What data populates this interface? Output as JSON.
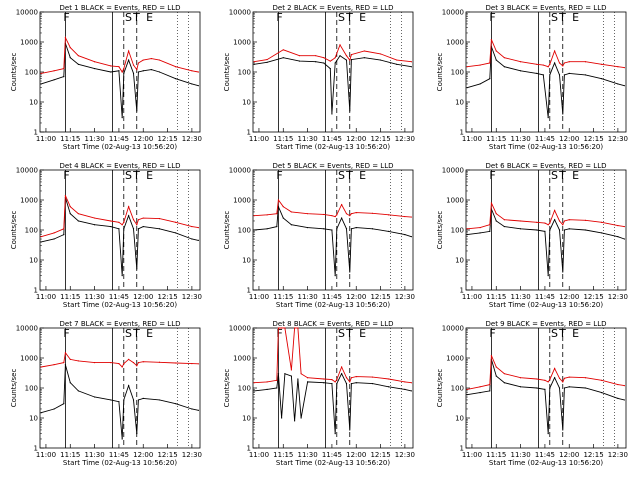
{
  "figure": {
    "ylabel": "Counts/sec",
    "xlabel": "Start Time (02-Aug-13 10:56:20)"
  },
  "axes": {
    "xlim": [
      "10:56:20",
      "12:35:00"
    ],
    "x_ticks": [
      "11:00",
      "11:15",
      "11:30",
      "11:45",
      "12:00",
      "12:15",
      "12:30"
    ],
    "ylim": [
      1,
      10000
    ],
    "y_scale": "log",
    "y_ticks": [
      "1",
      "10",
      "100",
      "1000",
      "10000"
    ]
  },
  "markers": {
    "solid": [
      "11:12",
      "11:41"
    ],
    "dashed": [
      "11:48",
      "11:56"
    ],
    "dotted": [
      "12:21",
      "12:28"
    ],
    "labels": [
      {
        "text": "F",
        "at": "11:12"
      },
      {
        "text": "S",
        "at": "11:50"
      },
      {
        "text": "T",
        "at": "11:55"
      },
      {
        "text": "E",
        "at": "12:03"
      }
    ]
  },
  "legend_colors": {
    "events": "#000000",
    "lld": "#e00000"
  },
  "chart_data": [
    {
      "type": "line",
      "title": "Det 1 BLACK = Events, RED = LLD",
      "x": [
        "10:57",
        "11:05",
        "11:11",
        "11:12",
        "11:15",
        "11:20",
        "11:30",
        "11:40",
        "11:45",
        "11:47",
        "11:48",
        "11:51",
        "11:54",
        "11:56",
        "11:57",
        "12:00",
        "12:05",
        "12:10",
        "12:20",
        "12:30",
        "12:34"
      ],
      "series": [
        {
          "name": "BLACK = Events",
          "values": [
            40,
            55,
            70,
            900,
            300,
            180,
            130,
            100,
            110,
            3,
            90,
            250,
            90,
            5,
            100,
            110,
            120,
            100,
            60,
            40,
            35
          ]
        },
        {
          "name": "RED = LLD",
          "values": [
            90,
            110,
            130,
            1400,
            650,
            350,
            220,
            160,
            150,
            100,
            130,
            500,
            170,
            120,
            200,
            250,
            280,
            250,
            150,
            110,
            100
          ]
        }
      ]
    },
    {
      "type": "line",
      "title": "Det 2 BLACK = Events, RED = LLD",
      "x": [
        "10:57",
        "11:05",
        "11:15",
        "11:25",
        "11:35",
        "11:40",
        "11:44",
        "11:45",
        "11:47",
        "11:50",
        "11:54",
        "11:56",
        "11:57",
        "12:05",
        "12:15",
        "12:25",
        "12:34"
      ],
      "series": [
        {
          "name": "BLACK = Events",
          "values": [
            180,
            210,
            300,
            230,
            220,
            200,
            130,
            4,
            200,
            350,
            250,
            5,
            260,
            300,
            250,
            180,
            150
          ]
        },
        {
          "name": "RED = LLD",
          "values": [
            220,
            260,
            550,
            350,
            350,
            300,
            230,
            250,
            300,
            800,
            350,
            250,
            380,
            500,
            400,
            250,
            220
          ]
        }
      ]
    },
    {
      "type": "line",
      "title": "Det 3 BLACK = Events, RED = LLD",
      "x": [
        "10:57",
        "11:05",
        "11:11",
        "11:12",
        "11:15",
        "11:20",
        "11:30",
        "11:40",
        "11:44",
        "11:47",
        "11:48",
        "11:51",
        "11:54",
        "11:56",
        "11:57",
        "12:00",
        "12:10",
        "12:20",
        "12:30",
        "12:34"
      ],
      "series": [
        {
          "name": "BLACK = Events",
          "values": [
            30,
            40,
            60,
            700,
            250,
            150,
            110,
            90,
            80,
            3,
            80,
            200,
            80,
            4,
            80,
            90,
            80,
            60,
            40,
            35
          ]
        },
        {
          "name": "RED = LLD",
          "values": [
            150,
            170,
            200,
            1200,
            500,
            300,
            220,
            180,
            170,
            150,
            180,
            500,
            200,
            160,
            200,
            220,
            220,
            180,
            150,
            140
          ]
        }
      ]
    },
    {
      "type": "line",
      "title": "Det 4 BLACK = Events, RED = LLD",
      "x": [
        "10:57",
        "11:05",
        "11:11",
        "11:12",
        "11:15",
        "11:20",
        "11:30",
        "11:40",
        "11:45",
        "11:47",
        "11:48",
        "11:51",
        "11:54",
        "11:56",
        "11:57",
        "12:00",
        "12:10",
        "12:20",
        "12:30",
        "12:34"
      ],
      "series": [
        {
          "name": "BLACK = Events",
          "values": [
            40,
            50,
            70,
            1200,
            350,
            200,
            150,
            130,
            110,
            3,
            110,
            300,
            110,
            5,
            110,
            130,
            110,
            80,
            50,
            45
          ]
        },
        {
          "name": "RED = LLD",
          "values": [
            60,
            80,
            110,
            1400,
            600,
            350,
            250,
            200,
            180,
            150,
            180,
            600,
            220,
            150,
            220,
            250,
            240,
            180,
            130,
            120
          ]
        }
      ]
    },
    {
      "type": "line",
      "title": "Det 5 BLACK = Events, RED = LLD",
      "x": [
        "10:57",
        "11:05",
        "11:11",
        "11:12",
        "11:15",
        "11:20",
        "11:30",
        "11:40",
        "11:45",
        "11:47",
        "11:48",
        "11:51",
        "11:54",
        "11:56",
        "11:57",
        "12:00",
        "12:10",
        "12:20",
        "12:30",
        "12:34"
      ],
      "series": [
        {
          "name": "BLACK = Events",
          "values": [
            100,
            110,
            130,
            600,
            250,
            150,
            120,
            110,
            100,
            3,
            110,
            250,
            110,
            4,
            110,
            120,
            110,
            90,
            70,
            60
          ]
        },
        {
          "name": "RED = LLD",
          "values": [
            300,
            320,
            350,
            1000,
            600,
            400,
            350,
            330,
            300,
            280,
            320,
            700,
            350,
            300,
            350,
            380,
            360,
            320,
            280,
            270
          ]
        }
      ]
    },
    {
      "type": "line",
      "title": "Det 6 BLACK = Events, RED = LLD",
      "x": [
        "10:57",
        "11:05",
        "11:11",
        "11:12",
        "11:15",
        "11:20",
        "11:30",
        "11:40",
        "11:45",
        "11:47",
        "11:48",
        "11:51",
        "11:54",
        "11:56",
        "11:57",
        "12:00",
        "12:10",
        "12:20",
        "12:30",
        "12:34"
      ],
      "series": [
        {
          "name": "BLACK = Events",
          "values": [
            70,
            80,
            90,
            500,
            200,
            130,
            110,
            100,
            90,
            3,
            100,
            220,
            100,
            4,
            100,
            110,
            100,
            80,
            60,
            50
          ]
        },
        {
          "name": "RED = LLD",
          "values": [
            110,
            120,
            150,
            800,
            350,
            220,
            200,
            180,
            170,
            150,
            170,
            450,
            200,
            150,
            200,
            220,
            210,
            180,
            140,
            130
          ]
        }
      ]
    },
    {
      "type": "line",
      "title": "Det 7 BLACK = Events, RED = LLD",
      "x": [
        "10:57",
        "11:05",
        "11:11",
        "11:12",
        "11:15",
        "11:20",
        "11:30",
        "11:40",
        "11:45",
        "11:47",
        "11:48",
        "11:51",
        "11:54",
        "11:56",
        "11:57",
        "12:00",
        "12:10",
        "12:20",
        "12:30",
        "12:34"
      ],
      "series": [
        {
          "name": "BLACK = Events",
          "values": [
            15,
            20,
            30,
            600,
            150,
            80,
            50,
            40,
            35,
            2,
            40,
            120,
            40,
            3,
            40,
            45,
            40,
            30,
            20,
            18
          ]
        },
        {
          "name": "RED = LLD",
          "values": [
            500,
            600,
            700,
            1500,
            900,
            800,
            700,
            700,
            650,
            500,
            650,
            900,
            700,
            550,
            700,
            750,
            720,
            680,
            650,
            640
          ]
        }
      ]
    },
    {
      "type": "line",
      "title": "Det 8 BLACK = Events, RED = LLD",
      "x": [
        "10:57",
        "11:05",
        "11:11",
        "11:12",
        "11:14",
        "11:16",
        "11:20",
        "11:22",
        "11:24",
        "11:26",
        "11:30",
        "11:40",
        "11:45",
        "11:47",
        "11:48",
        "11:51",
        "11:54",
        "11:56",
        "11:57",
        "12:00",
        "12:10",
        "12:20",
        "12:30",
        "12:34"
      ],
      "series": [
        {
          "name": "BLACK = Events",
          "values": [
            80,
            90,
            100,
            300,
            10,
            300,
            250,
            8,
            200,
            10,
            160,
            150,
            140,
            3,
            140,
            300,
            140,
            4,
            140,
            150,
            140,
            110,
            90,
            80
          ]
        },
        {
          "name": "RED = LLD",
          "values": [
            150,
            160,
            180,
            10000,
            10000,
            10000,
            400,
            10000,
            10000,
            300,
            220,
            200,
            190,
            160,
            190,
            500,
            220,
            160,
            220,
            240,
            230,
            200,
            160,
            150
          ]
        }
      ]
    },
    {
      "type": "line",
      "title": "Det 9 BLACK = Events, RED = LLD",
      "x": [
        "10:57",
        "11:05",
        "11:11",
        "11:12",
        "11:15",
        "11:20",
        "11:30",
        "11:40",
        "11:45",
        "11:47",
        "11:48",
        "11:51",
        "11:54",
        "11:56",
        "11:57",
        "12:00",
        "12:10",
        "12:20",
        "12:30",
        "12:34"
      ],
      "series": [
        {
          "name": "BLACK = Events",
          "values": [
            60,
            70,
            80,
            900,
            250,
            150,
            110,
            100,
            90,
            3,
            100,
            220,
            100,
            4,
            100,
            110,
            100,
            70,
            45,
            40
          ]
        },
        {
          "name": "RED = LLD",
          "values": [
            90,
            110,
            130,
            1200,
            500,
            300,
            220,
            200,
            180,
            160,
            190,
            450,
            210,
            160,
            210,
            230,
            220,
            180,
            130,
            120
          ]
        }
      ]
    }
  ]
}
